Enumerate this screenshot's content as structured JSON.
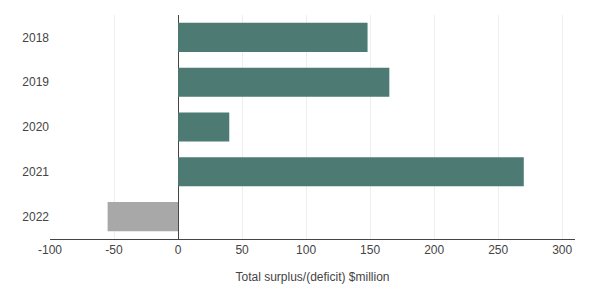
{
  "chart_data": {
    "type": "bar",
    "orientation": "horizontal",
    "categories": [
      "2018",
      "2019",
      "2020",
      "2021",
      "2022"
    ],
    "values": [
      148,
      165,
      40,
      270,
      -55
    ],
    "colors": [
      "#4d7a72",
      "#4d7a72",
      "#4d7a72",
      "#4d7a72",
      "#a8a8a8"
    ],
    "xlabel": "Total surplus/(deficit) $million",
    "xlim": [
      -100,
      310
    ],
    "xticks": [
      -100,
      -50,
      0,
      50,
      100,
      150,
      200,
      250,
      300
    ],
    "grid": true
  }
}
